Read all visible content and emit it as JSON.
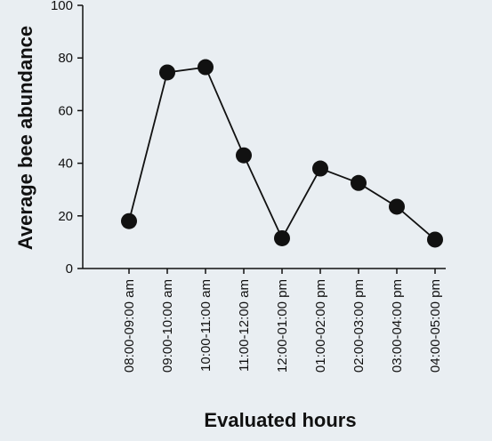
{
  "chart_data": {
    "type": "line",
    "x_label": "Evaluated hours",
    "y_label": "Average bee abundance",
    "categories": [
      "08:00-09:00 am",
      "09:00-10:00 am",
      "10:00-11:00 am",
      "11:00-12:00 am",
      "12:00-01:00 pm",
      "01:00-02:00 pm",
      "02:00-03:00 pm",
      "03:00-04:00 pm",
      "04:00-05:00 pm"
    ],
    "values": [
      18,
      74.5,
      76.5,
      43,
      11.5,
      38,
      32.5,
      23.5,
      11
    ],
    "color": "#111111",
    "ylim": [
      0,
      100
    ],
    "yticks": [
      0,
      20,
      40,
      60,
      80,
      100
    ],
    "grid": false
  }
}
